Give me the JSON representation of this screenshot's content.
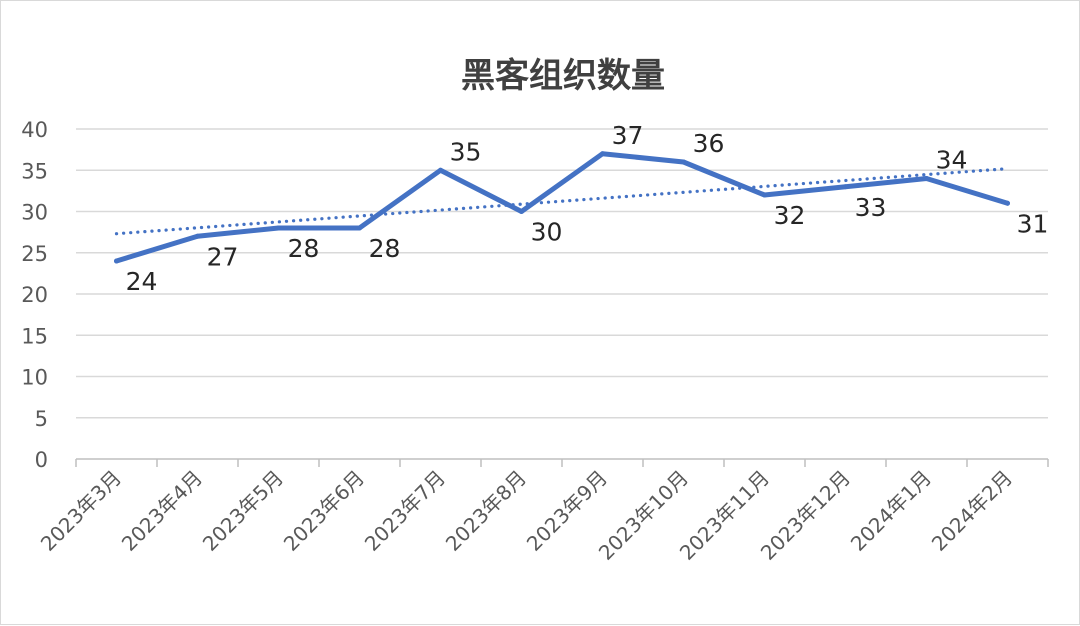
{
  "chart_data": {
    "type": "line",
    "title": "黑客组织数量",
    "xlabel": "",
    "ylabel": "",
    "categories": [
      "2023年3月",
      "2023年4月",
      "2023年5月",
      "2023年6月",
      "2023年7月",
      "2023年8月",
      "2023年9月",
      "2023年10月",
      "2023年11月",
      "2023年12月",
      "2024年1月",
      "2024年2月"
    ],
    "series": [
      {
        "values": [
          24,
          27,
          28,
          28,
          35,
          30,
          37,
          36,
          32,
          33,
          34,
          31
        ]
      }
    ],
    "trendline": "linear",
    "ylim": [
      0,
      40
    ],
    "yticks": [
      0,
      5,
      10,
      15,
      20,
      25,
      30,
      35,
      40
    ],
    "grid": true,
    "legend": "none",
    "colors": {
      "line": "#4472c4",
      "trend": "#4472c4"
    }
  }
}
